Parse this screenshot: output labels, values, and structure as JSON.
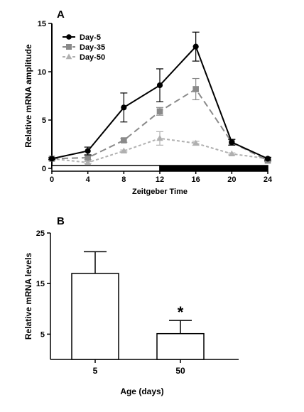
{
  "chart_data": [
    {
      "panel_label": "A",
      "type": "line",
      "xlabel": "Zeitgeber Time",
      "ylabel": "Relative mRNA amplitude",
      "x": [
        0,
        4,
        8,
        12,
        16,
        20,
        24
      ],
      "x_ticks": [
        "0",
        "4",
        "8",
        "12",
        "16",
        "20",
        "24"
      ],
      "y_ticks": [
        "0",
        "5",
        "10",
        "15"
      ],
      "xlim": [
        0,
        24
      ],
      "ylim": [
        0,
        15
      ],
      "light_dark_bar": {
        "light": [
          0,
          12
        ],
        "dark": [
          12,
          24
        ]
      },
      "legend_position": "top-left",
      "grid": false,
      "series": [
        {
          "name": "Day-5",
          "marker": "circle",
          "color": "#000000",
          "dash": "solid",
          "values": [
            1.0,
            1.8,
            6.3,
            8.6,
            12.6,
            2.7,
            1.0
          ],
          "errors": [
            0.1,
            0.4,
            1.5,
            1.7,
            1.5,
            0.3,
            0.15
          ]
        },
        {
          "name": "Day-35",
          "marker": "square",
          "color": "#8a8a8a",
          "dash": "long-dash",
          "values": [
            1.0,
            1.1,
            2.9,
            5.9,
            8.2,
            2.7,
            0.8
          ],
          "errors": [
            0.1,
            0.2,
            0.2,
            0.4,
            1.1,
            0.3,
            0.1
          ]
        },
        {
          "name": "Day-50",
          "marker": "triangle",
          "color": "#b0b0b0",
          "dash": "short-dash",
          "values": [
            1.0,
            0.6,
            1.8,
            3.1,
            2.6,
            1.5,
            1.0
          ],
          "errors": [
            0.05,
            0.1,
            0.1,
            0.7,
            0.2,
            0.1,
            0.05
          ]
        }
      ]
    },
    {
      "panel_label": "B",
      "type": "bar",
      "xlabel": "Age (days)",
      "ylabel": "Relative mRNA levels",
      "categories": [
        "5",
        "50"
      ],
      "values": [
        17.0,
        5.1
      ],
      "errors": [
        4.3,
        2.6
      ],
      "significance": [
        "",
        "*"
      ],
      "y_ticks": [
        "5",
        "15",
        "25"
      ],
      "ylim": [
        0,
        25
      ]
    }
  ]
}
